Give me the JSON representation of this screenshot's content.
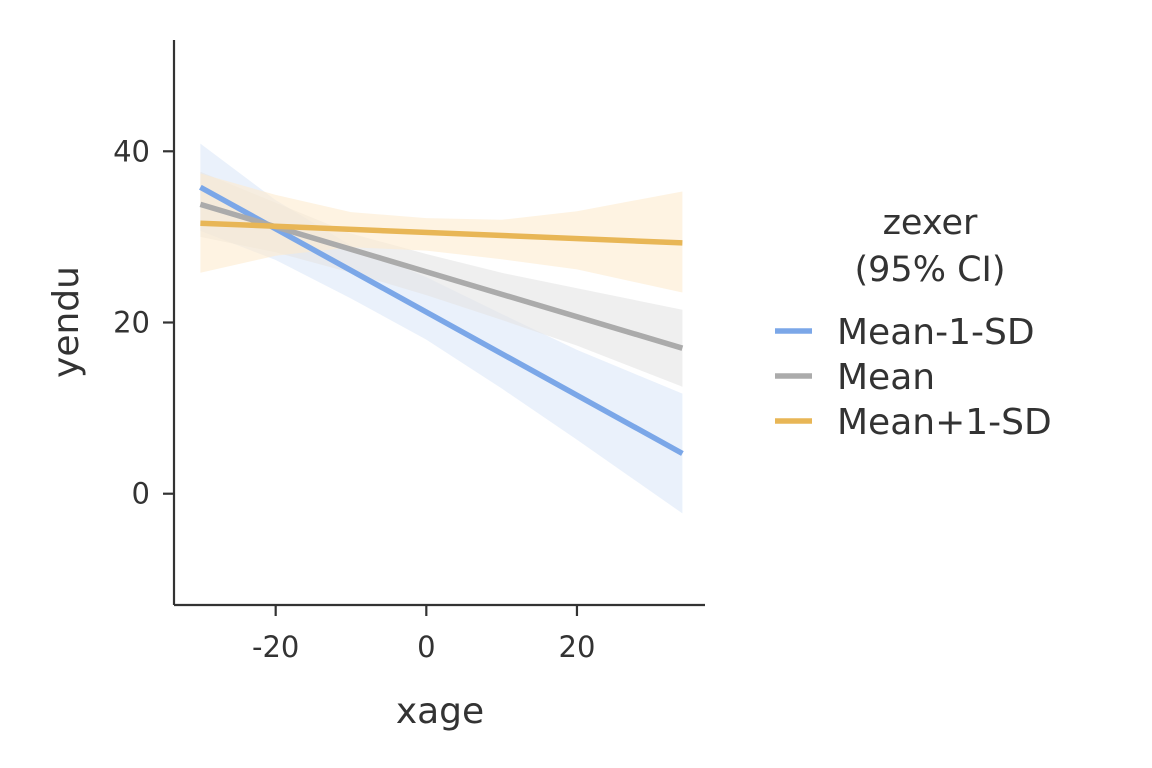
{
  "chart_data": {
    "type": "line",
    "xlabel": "xage",
    "ylabel": "yendu",
    "xlim": [
      -33.5,
      37
    ],
    "ylim": [
      -13,
      53
    ],
    "x_ticks": [
      -20,
      0,
      20
    ],
    "x_tick_labels": [
      "-20",
      "0",
      "20"
    ],
    "y_ticks": [
      0,
      20,
      40
    ],
    "y_tick_labels": [
      "0",
      "20",
      "40"
    ],
    "grid": false,
    "legend": {
      "title_lines": [
        "zexer",
        "(95% CI)"
      ],
      "position": "right"
    },
    "series": [
      {
        "name": "Mean-1-SD",
        "color": "#7BA7E8",
        "band_color": "#DCE8F9",
        "x": [
          -30,
          34
        ],
        "y": [
          35.8,
          4.7
        ],
        "ci_x": [
          -30,
          -20,
          -10,
          0,
          10,
          20,
          34
        ],
        "ci_lower": [
          30.7,
          27.3,
          22.8,
          18.0,
          12.3,
          6.3,
          -2.3
        ],
        "ci_upper": [
          40.9,
          34.3,
          29.0,
          25.3,
          21.0,
          16.8,
          11.7
        ]
      },
      {
        "name": "Mean",
        "color": "#ABABAB",
        "band_color": "#E4E4E4",
        "x": [
          -30,
          34
        ],
        "y": [
          33.8,
          17.0
        ],
        "ci_x": [
          -30,
          -20,
          -10,
          0,
          10,
          20,
          34
        ],
        "ci_lower": [
          30.0,
          28.2,
          25.8,
          23.2,
          20.3,
          17.3,
          12.5
        ],
        "ci_upper": [
          37.6,
          34.0,
          30.4,
          28.0,
          25.8,
          24.0,
          21.5
        ]
      },
      {
        "name": "Mean+1-SD",
        "color": "#E8B656",
        "band_color": "#FDEBCF",
        "x": [
          -30,
          34
        ],
        "y": [
          31.6,
          29.3
        ],
        "ci_x": [
          -30,
          -20,
          -10,
          0,
          10,
          20,
          34
        ],
        "ci_lower": [
          25.8,
          27.8,
          28.8,
          28.4,
          27.4,
          26.2,
          23.5
        ],
        "ci_upper": [
          37.4,
          34.9,
          32.9,
          32.2,
          32.0,
          33.0,
          35.3
        ]
      }
    ]
  }
}
